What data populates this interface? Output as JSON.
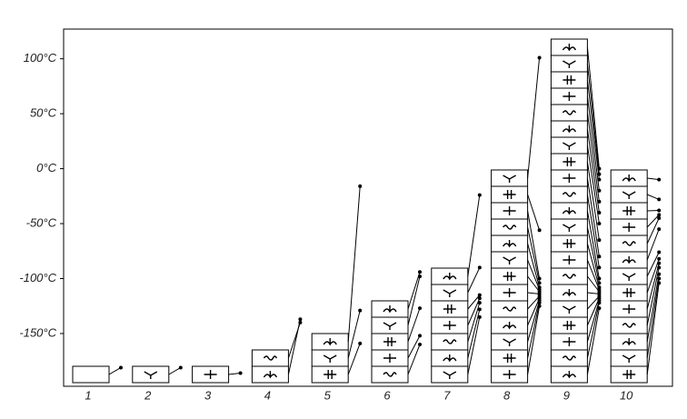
{
  "chart_data": {
    "type": "glyph-stack",
    "categories": [
      "1",
      "2",
      "3",
      "4",
      "5",
      "6",
      "7",
      "8",
      "9",
      "10"
    ],
    "values": [
      [
        -181
      ],
      [
        -181
      ],
      [
        -186
      ],
      [
        -137,
        -140
      ],
      [
        -159,
        -129,
        -16
      ],
      [
        -160,
        -152,
        -127,
        -98,
        -94
      ],
      [
        -135,
        -128,
        -122,
        -118,
        -115,
        -90,
        -24
      ],
      [
        -125,
        -122,
        -120,
        -118,
        -116,
        -114,
        -112,
        -110,
        -108,
        -104,
        -100,
        -56,
        101
      ],
      [
        -127,
        -122,
        -120,
        -118,
        -116,
        -114,
        -112,
        -110,
        -108,
        -104,
        -100,
        -90,
        -80,
        -65,
        -50,
        -40,
        -30,
        -20,
        -10,
        -5,
        0
      ],
      [
        -104,
        -100,
        -96,
        -90,
        -86,
        -82,
        -76,
        -55,
        -45,
        -42,
        -38,
        -28,
        -10
      ]
    ],
    "ylim": [
      -198,
      127
    ],
    "yticks": [
      {
        "value": -150,
        "label": "-150°C"
      },
      {
        "value": -100,
        "label": "-100°C"
      },
      {
        "value": -50,
        "label": "-50°C"
      },
      {
        "value": 0,
        "label": "0°C"
      },
      {
        "value": 50,
        "label": "50°C"
      },
      {
        "value": 100,
        "label": "100°C"
      }
    ],
    "color": "#000000"
  }
}
